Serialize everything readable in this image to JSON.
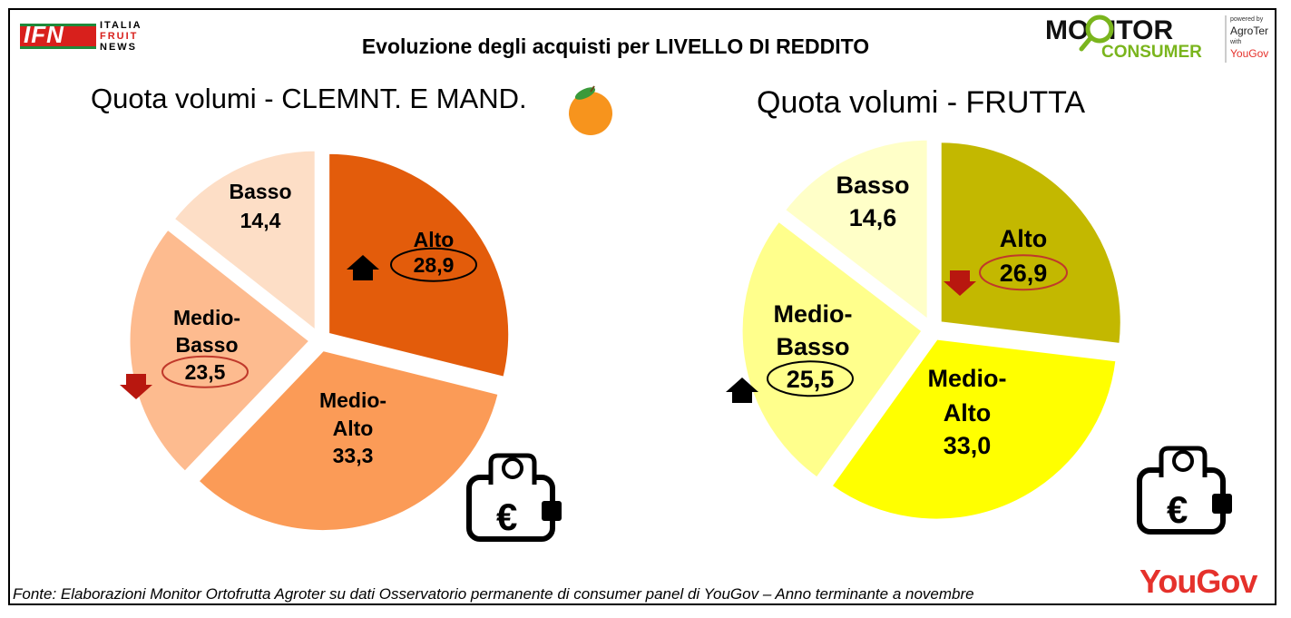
{
  "header": {
    "title": "Evoluzione degli acquisti per LIVELLO DI REDDITO",
    "ifn_logo": {
      "letters": "IFN",
      "line1": "ITALIA",
      "line2": "FRUIT",
      "line3": "NEWS"
    },
    "monitor_logo": {
      "word1": "MONITOR",
      "word2": "CONSUMER",
      "powered": "powered by",
      "brand": "AgroTer",
      "with": "with",
      "partner": "YouGov"
    }
  },
  "footer": {
    "source": "Fonte: Elaborazioni Monitor Ortofrutta Agroter su dati Osservatorio permanente di consumer panel di YouGov – Anno terminante a novembre",
    "brand": "YouGov"
  },
  "icons": [
    "orange-icon",
    "wallet-euro-icon",
    "up-arrow-icon",
    "down-arrow-icon"
  ],
  "chart_data": [
    {
      "type": "pie",
      "title": "Quota volumi - CLEMNT. E MAND.",
      "slices": [
        {
          "label": "Alto",
          "value": 28.9,
          "display": "28,9",
          "color": "#e35c0b",
          "trend": "up",
          "highlight_color": "#000000"
        },
        {
          "label": "Medio-Alto",
          "value": 33.3,
          "display": "33,3",
          "color": "#fb9b57",
          "trend": null
        },
        {
          "label": "Medio-Basso",
          "value": 23.5,
          "display": "23,5",
          "color": "#fdbb8f",
          "trend": "down",
          "highlight_color": "#c0392b"
        },
        {
          "label": "Basso",
          "value": 14.4,
          "display": "14,4",
          "color": "#fddec6",
          "trend": null
        }
      ]
    },
    {
      "type": "pie",
      "title": "Quota volumi - FRUTTA",
      "slices": [
        {
          "label": "Alto",
          "value": 26.9,
          "display": "26,9",
          "color": "#c3b800",
          "trend": "down",
          "highlight_color": "#c0392b"
        },
        {
          "label": "Medio-Alto",
          "value": 33.0,
          "display": "33,0",
          "color": "#ffff00",
          "trend": null
        },
        {
          "label": "Medio-Basso",
          "value": 25.5,
          "display": "25,5",
          "color": "#ffff8c",
          "trend": "up",
          "highlight_color": "#000000"
        },
        {
          "label": "Basso",
          "value": 14.6,
          "display": "14,6",
          "color": "#ffffc8",
          "trend": null
        }
      ]
    }
  ]
}
